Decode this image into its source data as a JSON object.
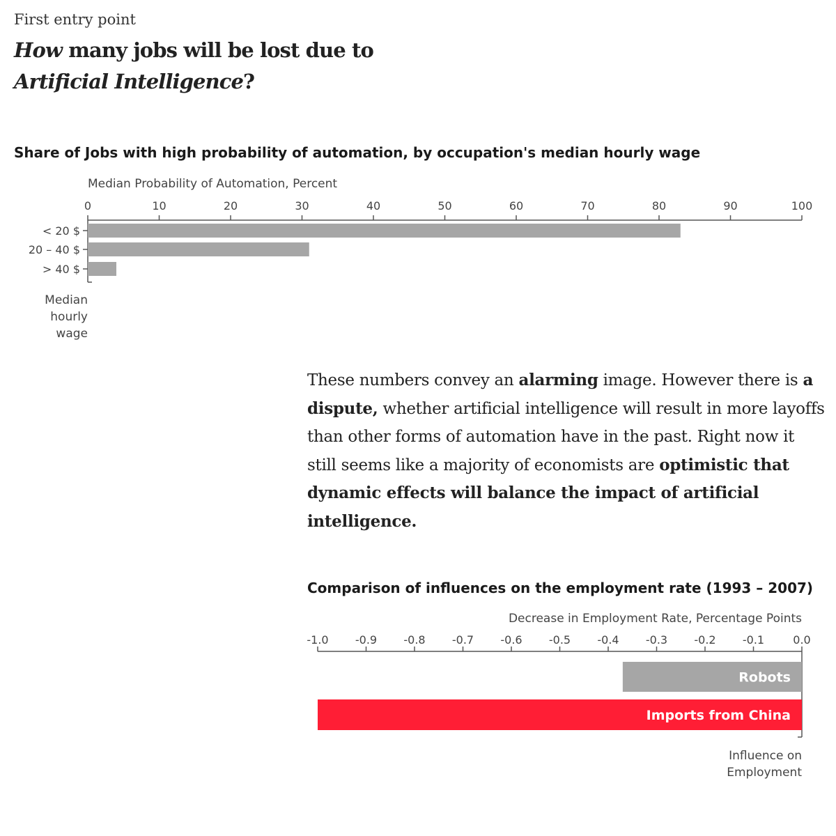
{
  "header": {
    "kicker": "First entry point",
    "headline_part1_italic": "How",
    "headline_part1_rest": " many jobs will be lost due to",
    "headline_part2_italic": "Artificial Intelligence",
    "headline_part2_rest": "?"
  },
  "paragraph": {
    "s1": "These numbers convey an ",
    "b1": "alarming",
    "s2": " image. However there is ",
    "b2": "a dispute,",
    "s3": " whether artificial intelligence will result in more layoffs than other forms of automation have in the past. Right now it still seems like a majority of economists are ",
    "b3": "optimistic that dynamic effects will balance the impact of artificial intelligence."
  },
  "colors": {
    "bar_gray": "#a6a6a6",
    "accent_red": "#ff1e35",
    "axis": "#555555",
    "text_gray": "#444444"
  },
  "chart_data": [
    {
      "type": "bar",
      "orientation": "horizontal",
      "title": "Share of Jobs with high probability of automation, by occupation's median hourly wage",
      "xlabel": "Median Probability of Automation, Percent",
      "ylabel_lines": [
        "Median",
        "hourly",
        "wage"
      ],
      "categories": [
        "< 20 $",
        "20 – 40 $",
        "> 40 $"
      ],
      "values": [
        83,
        31,
        4
      ],
      "xlim": [
        0,
        100
      ],
      "xticks": [
        0,
        10,
        20,
        30,
        40,
        50,
        60,
        70,
        80,
        90,
        100
      ],
      "grid": false,
      "axis_position": "top"
    },
    {
      "type": "bar",
      "orientation": "horizontal",
      "title": "Comparison of influences on the employment rate (1993 – 2007)",
      "xlabel": "Decrease in Employment Rate, Percentage Points",
      "ylabel_lines": [
        "Influence on",
        "Employment"
      ],
      "categories": [
        "Robots",
        "Imports from China"
      ],
      "values": [
        -0.37,
        -1.0
      ],
      "bar_colors": [
        "#a6a6a6",
        "#ff1e35"
      ],
      "xlim": [
        -1.0,
        0.0
      ],
      "xticks": [
        "-1.0",
        "-0.9",
        "-0.8",
        "-0.7",
        "-0.6",
        "-0.5",
        "-0.4",
        "-0.3",
        "-0.2",
        "-0.1",
        "0.0"
      ],
      "grid": false,
      "axis_position": "top"
    }
  ]
}
